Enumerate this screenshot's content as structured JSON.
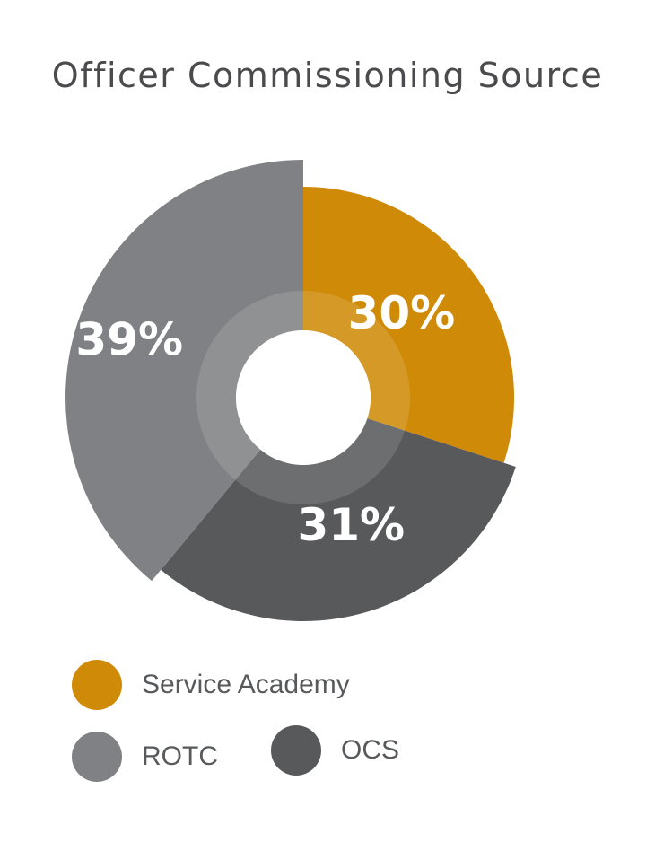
{
  "chart_data": {
    "type": "pie",
    "title": "Officer Commissioning Source",
    "slices": [
      {
        "label": "Service Academy",
        "value": 30,
        "display": "30%",
        "color": "#cf8a07"
      },
      {
        "label": "OCS",
        "value": 31,
        "display": "31%",
        "color": "#58595b"
      },
      {
        "label": "ROTC",
        "value": 39,
        "display": "39%",
        "color": "#808184"
      }
    ],
    "legend": [
      {
        "label": "Service Academy",
        "color": "#cf8a07"
      },
      {
        "label": "ROTC",
        "color": "#808184"
      },
      {
        "label": "OCS",
        "color": "#58595b"
      }
    ],
    "legend_position": "bottom"
  }
}
